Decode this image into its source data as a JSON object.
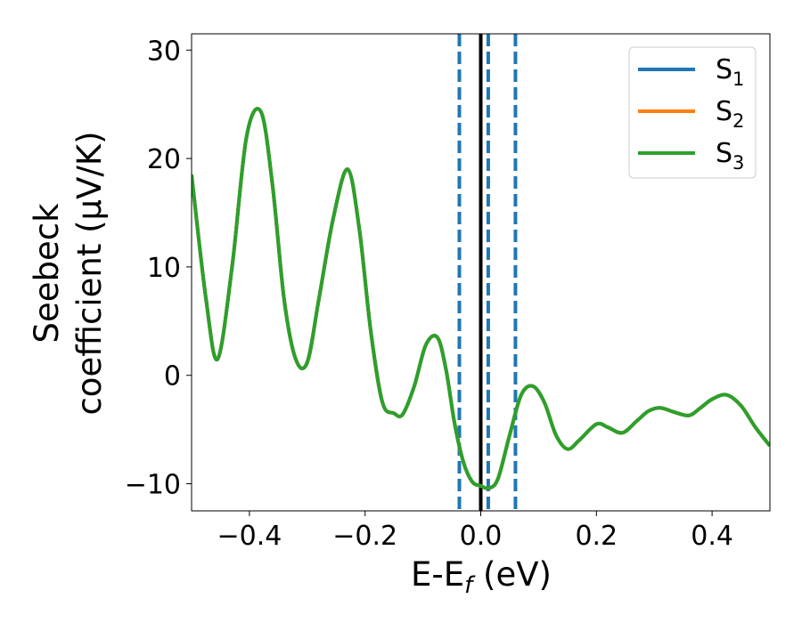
{
  "chart_data": {
    "type": "line",
    "xlabel": {
      "main": "E-E",
      "sub": "f",
      "rest": " (eV)"
    },
    "ylabel": {
      "line1": "Seebeck",
      "line2": "coefficient  (μV/K)"
    },
    "xlim": [
      -0.5,
      0.5
    ],
    "ylim": [
      -12.5,
      31.5
    ],
    "xticks": [
      -0.4,
      -0.2,
      0.0,
      0.2,
      0.4
    ],
    "xtick_labels": [
      "−0.4",
      "−0.2",
      "0.0",
      "0.2",
      "0.4"
    ],
    "yticks": [
      -10,
      0,
      10,
      20,
      30
    ],
    "ytick_labels": [
      "−10",
      "0",
      "10",
      "20",
      "30"
    ],
    "grid": false,
    "legend_placement": "top-right",
    "series": [
      {
        "name": {
          "main": "S",
          "sub": "1"
        },
        "color": "#1f77b4",
        "x": [
          -0.5,
          -0.475,
          -0.455,
          -0.43,
          -0.405,
          -0.38,
          -0.36,
          -0.34,
          -0.32,
          -0.3,
          -0.28,
          -0.255,
          -0.23,
          -0.21,
          -0.19,
          -0.17,
          -0.15,
          -0.135,
          -0.115,
          -0.095,
          -0.075,
          -0.06,
          -0.045,
          -0.03,
          -0.015,
          0.0,
          0.015,
          0.03,
          0.05,
          0.07,
          0.09,
          0.11,
          0.13,
          0.15,
          0.17,
          0.2,
          0.22,
          0.245,
          0.27,
          0.29,
          0.31,
          0.335,
          0.36,
          0.38,
          0.4,
          0.425,
          0.45,
          0.475,
          0.5
        ],
        "values": [
          18.5,
          7.0,
          1.5,
          10.0,
          22.0,
          24.3,
          17.5,
          7.0,
          1.5,
          1.2,
          7.0,
          14.5,
          19.0,
          13.5,
          4.0,
          -2.5,
          -3.5,
          -3.6,
          -1.0,
          2.8,
          3.5,
          0.5,
          -4.5,
          -8.0,
          -9.8,
          -10.2,
          -10.4,
          -9.5,
          -5.5,
          -1.8,
          -1.0,
          -2.5,
          -5.5,
          -6.8,
          -6.0,
          -4.5,
          -4.8,
          -5.3,
          -4.2,
          -3.3,
          -3.0,
          -3.4,
          -3.7,
          -3.0,
          -2.2,
          -1.8,
          -2.8,
          -4.8,
          -6.5
        ]
      },
      {
        "name": {
          "main": "S",
          "sub": "2"
        },
        "color": "#ff7f0e",
        "x": [
          -0.5,
          -0.475,
          -0.455,
          -0.43,
          -0.405,
          -0.38,
          -0.36,
          -0.34,
          -0.32,
          -0.3,
          -0.28,
          -0.255,
          -0.23,
          -0.21,
          -0.19,
          -0.17,
          -0.15,
          -0.135,
          -0.115,
          -0.095,
          -0.075,
          -0.06,
          -0.045,
          -0.03,
          -0.015,
          0.0,
          0.015,
          0.03,
          0.05,
          0.07,
          0.09,
          0.11,
          0.13,
          0.15,
          0.17,
          0.2,
          0.22,
          0.245,
          0.27,
          0.29,
          0.31,
          0.335,
          0.36,
          0.38,
          0.4,
          0.425,
          0.45,
          0.475,
          0.5
        ],
        "values": [
          18.5,
          7.0,
          1.5,
          10.0,
          22.0,
          24.3,
          17.5,
          7.0,
          1.5,
          1.2,
          7.0,
          14.5,
          19.0,
          13.5,
          4.0,
          -2.5,
          -3.5,
          -3.6,
          -1.0,
          2.8,
          3.5,
          0.5,
          -4.5,
          -8.0,
          -9.8,
          -10.2,
          -10.4,
          -9.5,
          -5.5,
          -1.8,
          -1.0,
          -2.5,
          -5.5,
          -6.8,
          -6.0,
          -4.5,
          -4.8,
          -5.3,
          -4.2,
          -3.3,
          -3.0,
          -3.4,
          -3.7,
          -3.0,
          -2.2,
          -1.8,
          -2.8,
          -4.8,
          -6.5
        ]
      },
      {
        "name": {
          "main": "S",
          "sub": "3"
        },
        "color": "#2ca02c",
        "x": [
          -0.5,
          -0.475,
          -0.455,
          -0.43,
          -0.405,
          -0.38,
          -0.36,
          -0.34,
          -0.32,
          -0.3,
          -0.28,
          -0.255,
          -0.23,
          -0.21,
          -0.19,
          -0.17,
          -0.15,
          -0.135,
          -0.115,
          -0.095,
          -0.075,
          -0.06,
          -0.045,
          -0.03,
          -0.015,
          0.0,
          0.015,
          0.03,
          0.05,
          0.07,
          0.09,
          0.11,
          0.13,
          0.15,
          0.17,
          0.2,
          0.22,
          0.245,
          0.27,
          0.29,
          0.31,
          0.335,
          0.36,
          0.38,
          0.4,
          0.425,
          0.45,
          0.475,
          0.5
        ],
        "values": [
          18.5,
          7.0,
          1.5,
          10.0,
          22.0,
          24.3,
          17.5,
          7.0,
          1.5,
          1.2,
          7.0,
          14.5,
          19.0,
          13.5,
          4.0,
          -2.5,
          -3.5,
          -3.6,
          -1.0,
          2.8,
          3.5,
          0.5,
          -4.5,
          -8.0,
          -9.8,
          -10.2,
          -10.4,
          -9.5,
          -5.5,
          -1.8,
          -1.0,
          -2.5,
          -5.5,
          -6.8,
          -6.0,
          -4.5,
          -4.8,
          -5.3,
          -4.2,
          -3.3,
          -3.0,
          -3.4,
          -3.7,
          -3.0,
          -2.2,
          -1.8,
          -2.8,
          -4.8,
          -6.5
        ]
      }
    ],
    "vertical_lines": [
      {
        "x": -0.037,
        "style": "dashed",
        "color": "#1f77b4"
      },
      {
        "x": 0.0,
        "style": "solid",
        "color": "#000000"
      },
      {
        "x": 0.013,
        "style": "dashed",
        "color": "#1f77b4"
      },
      {
        "x": 0.06,
        "style": "dashed",
        "color": "#1f77b4"
      }
    ]
  }
}
